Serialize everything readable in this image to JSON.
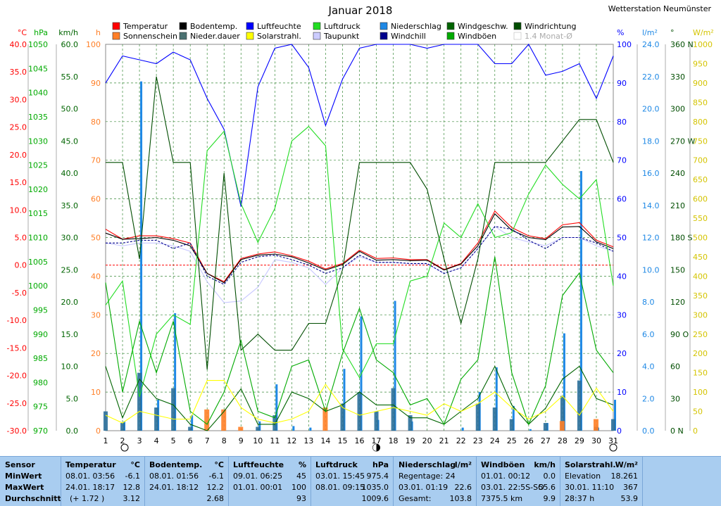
{
  "title": "Januar 2018",
  "station": "Wetterstation Neumünster",
  "legend": [
    {
      "label": "Temperatur",
      "color": "#ff0000",
      "style": "fill"
    },
    {
      "label": "Bodentemp.",
      "color": "#000000",
      "style": "fill"
    },
    {
      "label": "Luftfeuchte",
      "color": "#0000ff",
      "style": "fill"
    },
    {
      "label": "Luftdruck",
      "color": "#22dd22",
      "style": "fill"
    },
    {
      "label": "Niederschlag",
      "color": "#1e88e5",
      "style": "fill"
    },
    {
      "label": "Windgeschw.",
      "color": "#006400",
      "style": "fill"
    },
    {
      "label": "Windrichtung",
      "color": "#004d00",
      "style": "fill"
    },
    {
      "label": "Sonnenschein",
      "color": "#ff7f27",
      "style": "fill"
    },
    {
      "label": "Nieder.dauer",
      "color": "#4a7070",
      "style": "fill"
    },
    {
      "label": "Solarstrahl.",
      "color": "#ffff00",
      "style": "fill"
    },
    {
      "label": "Taupunkt",
      "color": "#ccccff",
      "style": "fill"
    },
    {
      "label": "Windchill",
      "color": "#00008b",
      "style": "fill"
    },
    {
      "label": "Windböen",
      "color": "#00aa00",
      "style": "fill"
    },
    {
      "label": "1.4 Monat-Ø",
      "color": "#cccccc",
      "style": "outline"
    }
  ],
  "axes": {
    "left": [
      {
        "unit": "°C",
        "color": "#ff0000",
        "ticks": [
          "40.0",
          "35.0",
          "30.0",
          "25.0",
          "20.0",
          "15.0",
          "10.0",
          "5.0",
          "0.0",
          "-5.0",
          "-10.0",
          "-15.0",
          "-20.0",
          "-25.0",
          "-30.0"
        ]
      },
      {
        "unit": "hPa",
        "color": "#00aa00",
        "ticks": [
          "1050",
          "1045",
          "1040",
          "1035",
          "1030",
          "1025",
          "1020",
          "1015",
          "1010",
          "1005",
          "1000",
          "995",
          "990",
          "985",
          "980",
          "975",
          "970"
        ]
      },
      {
        "unit": "km/h",
        "color": "#006400",
        "ticks": [
          "60.0",
          "55.0",
          "50.0",
          "45.0",
          "40.0",
          "35.0",
          "30.0",
          "25.0",
          "20.0",
          "15.0",
          "10.0",
          "5.0",
          "0.0"
        ]
      },
      {
        "unit": "h",
        "color": "#ff7f27",
        "ticks": [
          "100",
          "90",
          "80",
          "70",
          "60",
          "50",
          "40",
          "30",
          "20",
          "10",
          "0"
        ]
      }
    ],
    "right": [
      {
        "unit": "%",
        "color": "#0000ff",
        "ticks": [
          "100",
          "90",
          "80",
          "70",
          "60",
          "50",
          "40",
          "30",
          "20",
          "10",
          "0"
        ]
      },
      {
        "unit": "l/m²",
        "color": "#1e88e5",
        "ticks": [
          "24.0",
          "22.0",
          "20.0",
          "18.0",
          "16.0",
          "14.0",
          "12.0",
          "10.0",
          "8.0",
          "6.0",
          "4.0",
          "2.0",
          "0.0"
        ]
      },
      {
        "unit": "°",
        "color": "#004d00",
        "ticks": [
          "360 N",
          "330",
          "300",
          "270 W",
          "240",
          "210",
          "180 S",
          "150",
          "120",
          "90 O",
          "60",
          "30",
          "0 N"
        ]
      },
      {
        "unit": "W/m²",
        "color": "#d4c400",
        "ticks": [
          "1000",
          "950",
          "900",
          "850",
          "800",
          "750",
          "700",
          "650",
          "600",
          "550",
          "500",
          "450",
          "400",
          "350",
          "300",
          "250",
          "200",
          "150",
          "100",
          "50",
          "0"
        ]
      }
    ]
  },
  "moon_phases": [
    {
      "day": 2,
      "phase": "full"
    },
    {
      "day": 17,
      "phase": "new"
    },
    {
      "day": 31,
      "phase": "full"
    }
  ],
  "chart_data": {
    "type": "line",
    "title": "Januar 2018",
    "x": [
      1,
      2,
      3,
      4,
      5,
      6,
      7,
      8,
      9,
      10,
      11,
      12,
      13,
      14,
      15,
      16,
      17,
      18,
      19,
      20,
      21,
      22,
      23,
      24,
      25,
      26,
      27,
      28,
      29,
      30,
      31
    ],
    "xlim": [
      1,
      31
    ],
    "series": [
      {
        "name": "Temperatur",
        "axis": "°C",
        "color": "#ff0000",
        "style": "line",
        "values": [
          6.5,
          4.7,
          5.3,
          5.3,
          4.8,
          4.0,
          -1.5,
          -3.0,
          1.2,
          2.0,
          2.4,
          1.7,
          0.7,
          -0.7,
          0.3,
          2.7,
          1.2,
          1.3,
          1.0,
          1.0,
          -0.8,
          0.3,
          4.0,
          9.8,
          6.8,
          5.3,
          4.8,
          7.3,
          7.7,
          4.5,
          3.3
        ]
      },
      {
        "name": "Bodentemp.",
        "axis": "°C",
        "color": "#000000",
        "style": "line",
        "values": [
          5.8,
          4.7,
          4.8,
          5.0,
          4.5,
          3.5,
          -1.5,
          -3.2,
          1.0,
          1.8,
          2.0,
          1.5,
          0.4,
          -0.9,
          0.1,
          2.5,
          0.9,
          1.0,
          0.8,
          0.9,
          -0.9,
          0.2,
          3.5,
          9.3,
          6.3,
          5.0,
          4.6,
          6.9,
          7.0,
          4.2,
          3.0
        ]
      },
      {
        "name": "Taupunkt",
        "axis": "°C",
        "color": "#c8c8ff",
        "style": "line",
        "values": [
          4.0,
          3.5,
          4.0,
          4.0,
          3.5,
          2.5,
          -3.0,
          -6.8,
          -6.5,
          -4.0,
          1.0,
          0.5,
          -0.5,
          -3.5,
          -0.5,
          1.5,
          0.5,
          0.5,
          0.2,
          0.2,
          -1.5,
          -0.5,
          3.0,
          7.0,
          5.0,
          4.2,
          3.5,
          5.0,
          5.0,
          3.5,
          2.5
        ]
      },
      {
        "name": "Windchill",
        "axis": "°C",
        "color": "#00008b",
        "style": "dash",
        "values": [
          4.0,
          4.0,
          4.5,
          4.5,
          3.0,
          4.0,
          -2.0,
          -3.5,
          0.5,
          1.5,
          1.8,
          1.0,
          0.0,
          -1.5,
          -0.5,
          1.8,
          0.5,
          0.5,
          0.3,
          0.3,
          -1.5,
          -0.5,
          3.0,
          7.0,
          6.5,
          4.5,
          3.0,
          5.0,
          5.0,
          4.0,
          2.5
        ]
      },
      {
        "name": "Luftfeuchte",
        "axis": "%",
        "color": "#0000ff",
        "style": "line",
        "values": [
          90,
          97,
          96,
          95,
          98,
          96,
          86,
          78,
          58,
          89,
          99,
          100,
          94,
          79,
          91,
          99,
          100,
          100,
          100,
          99,
          100,
          100,
          100,
          95,
          95,
          100,
          92,
          93,
          95,
          86,
          97
        ]
      },
      {
        "name": "Luftdruck",
        "axis": "hPa",
        "color": "#22dd22",
        "style": "line",
        "values": [
          996,
          1001,
          977,
          990,
          994,
          992,
          1028,
          1032,
          1017,
          1009,
          1016,
          1030,
          1033,
          1029,
          987,
          981,
          988,
          988,
          1001,
          1002,
          1013,
          1010,
          1017,
          1010,
          1011,
          1019,
          1025,
          1021,
          1018,
          1022,
          1000
        ]
      },
      {
        "name": "Windgeschw.",
        "axis": "km/h",
        "color": "#006400",
        "style": "line",
        "values": [
          10.0,
          2.0,
          8.0,
          5.0,
          4.0,
          1.0,
          0.0,
          3.0,
          6.5,
          1.0,
          1.0,
          6.0,
          5.0,
          3.0,
          4.0,
          6.0,
          4.0,
          4.0,
          2.0,
          2.0,
          1.0,
          3.0,
          5.0,
          10.0,
          4.0,
          1.0,
          3.5,
          8.0,
          10.0,
          5.0,
          4.0
        ]
      },
      {
        "name": "Windböen",
        "axis": "km/h",
        "color": "#00aa00",
        "style": "line",
        "values": [
          23.0,
          6.0,
          17.0,
          9.0,
          17.0,
          3.0,
          1.0,
          6.0,
          14.0,
          3.0,
          2.0,
          10.0,
          11.0,
          3.0,
          12.0,
          19.0,
          11.0,
          9.0,
          4.0,
          5.0,
          1.0,
          8.0,
          11.0,
          27.0,
          9.0,
          1.0,
          7.0,
          21.0,
          24.5,
          12.5,
          9.0
        ]
      },
      {
        "name": "Windrichtung",
        "axis": "°",
        "color": "#004d00",
        "style": "line",
        "values": [
          250,
          250,
          160,
          330,
          250,
          250,
          57,
          240,
          75,
          90,
          75,
          75,
          100,
          100,
          150,
          250,
          250,
          250,
          250,
          225,
          160,
          100,
          160,
          250,
          250,
          250,
          250,
          270,
          290,
          290,
          250
        ]
      },
      {
        "name": "Solarstrahl.",
        "axis": "W/m²",
        "color": "#ffff00",
        "style": "line",
        "values": [
          40,
          20,
          50,
          40,
          30,
          30,
          130,
          130,
          60,
          30,
          20,
          30,
          50,
          120,
          60,
          40,
          50,
          60,
          50,
          40,
          70,
          50,
          70,
          100,
          60,
          30,
          50,
          90,
          40,
          110,
          50
        ]
      },
      {
        "name": "Niederschlag",
        "axis": "l/m²",
        "color": "#1e88e5",
        "style": "bar",
        "values": [
          0.0,
          0.6,
          22.6,
          2.0,
          7.6,
          1.0,
          0.0,
          0.0,
          0.0,
          0.6,
          3.0,
          0.3,
          0.2,
          0.0,
          4.0,
          7.4,
          0.7,
          8.4,
          0.6,
          0.0,
          0.0,
          0.2,
          2.5,
          4.1,
          1.6,
          0.1,
          0.5,
          6.3,
          16.8,
          0.2,
          2.0
        ]
      },
      {
        "name": "Nieder.dauer",
        "axis": "h",
        "color": "#2a6f9a",
        "style": "bar",
        "values": [
          5,
          2,
          15,
          6,
          11,
          1,
          0,
          0,
          0,
          1,
          4,
          0,
          0,
          0,
          7,
          10,
          5,
          11,
          4,
          0,
          0,
          0,
          7,
          6,
          3,
          0,
          2,
          9,
          13,
          1,
          3
        ]
      },
      {
        "name": "Sonnenschein",
        "axis": "h",
        "color": "#ff7f27",
        "style": "bar",
        "values": [
          0,
          0,
          0,
          0,
          0,
          0,
          5.5,
          5.5,
          1.0,
          0,
          0,
          0,
          0,
          6.0,
          0,
          0,
          0,
          0,
          0,
          0,
          0,
          0,
          0,
          0,
          0,
          0,
          0,
          2.5,
          0,
          3.0,
          0
        ]
      }
    ]
  },
  "stats": {
    "headers": {
      "sensor": "Sensor",
      "min": "MinWert",
      "max": "MaxWert",
      "avg": "Durchschnitt"
    },
    "temperatur": {
      "title": "Temperatur",
      "unit": "°C",
      "min_time": "08.01. 03:56",
      "min_val": "-6.1",
      "max_time": "24.01. 18:17",
      "max_val": "12.8",
      "avg_extra": "(+ 1.72 )",
      "avg_val": "3.12"
    },
    "bodentemp": {
      "title": "Bodentemp.",
      "unit": "°C",
      "min_time": "08.01. 01:56",
      "min_val": "-6.1",
      "max_time": "24.01. 18:12",
      "max_val": "12.2",
      "avg_val": "2.68"
    },
    "luftfeuchte": {
      "title": "Luftfeuchte",
      "unit": "%",
      "min_time": "09.01. 06:25",
      "min_val": "45",
      "max_time": "01.01. 00:01",
      "max_val": "100",
      "avg_val": "93"
    },
    "luftdruck": {
      "title": "Luftdruck",
      "unit": "hPa",
      "min_time": "03.01. 15:45",
      "min_val": "975.4",
      "max_time": "08.01. 09:15",
      "max_val": "1035.0",
      "avg_val": "1009.6"
    },
    "niederschlag": {
      "title": "Niederschlag",
      "unit": "l/m²",
      "row1_label": "Regentage: 24",
      "row1_val": "",
      "row2_label": "03.01. 01:19",
      "row2_val": "22.6",
      "row3_label": "Gesamt:",
      "row3_val": "103.8"
    },
    "windboeen": {
      "title": "Windböen",
      "unit": "km/h",
      "row1_label": "01.01. 00:12",
      "row1_val": "0.0",
      "row2_label": "03.01. 22:5S-SO",
      "row2_val": "55.6",
      "row3_label": "7375.5 km",
      "row3_val": "9.9"
    },
    "solar": {
      "title": "Solarstrahl.",
      "unit": "W/m²",
      "row1_label": "Elevation",
      "row1_val": "18.261",
      "row2_label": "30.01. 11:10",
      "row2_val": "367",
      "row3_label": "28:37 h",
      "row3_val": "53.9"
    }
  }
}
